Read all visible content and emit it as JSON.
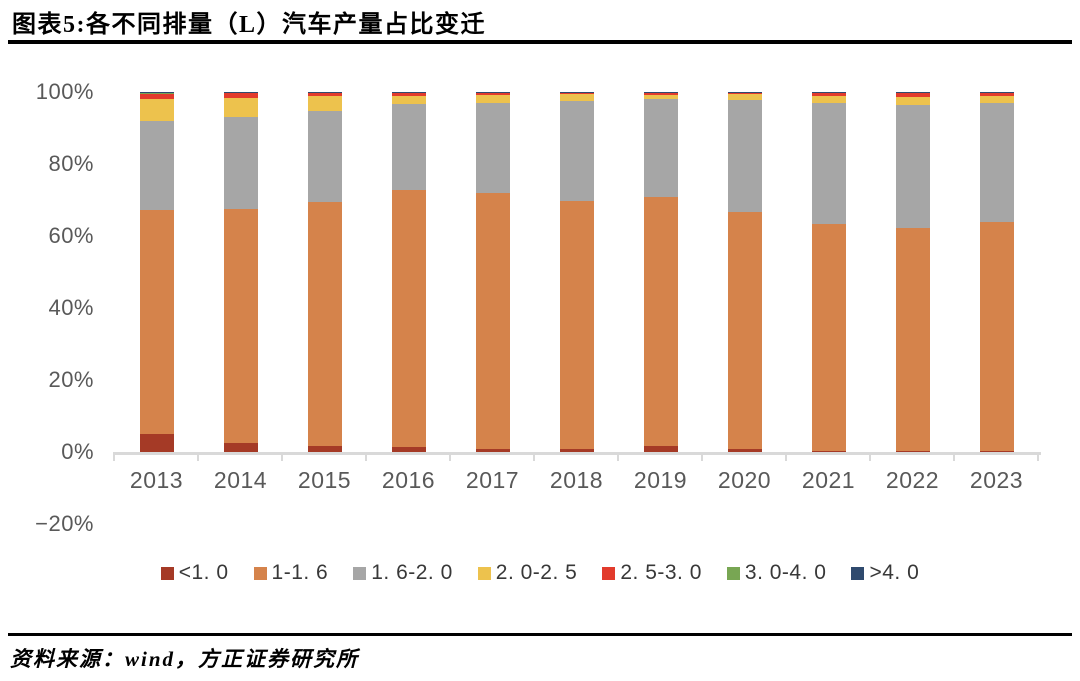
{
  "page": {
    "title": "图表5:各不同排量（L）汽车产量占比变迁",
    "source": "资料来源：wind，方正证券研究所"
  },
  "chart_data": {
    "type": "bar",
    "stacked": true,
    "stacking": "percent",
    "unit": "%",
    "title": "图表5:各不同排量（L）汽车产量占比变迁",
    "categories": [
      "2013",
      "2014",
      "2015",
      "2016",
      "2017",
      "2018",
      "2019",
      "2020",
      "2021",
      "2022",
      "2023"
    ],
    "series": [
      {
        "name": "<1. 0",
        "color": "#A53A26",
        "values": [
          5.0,
          2.5,
          1.8,
          1.3,
          0.7,
          0.7,
          1.8,
          0.9,
          0.3,
          0.2,
          0.3
        ]
      },
      {
        "name": "1-1. 6",
        "color": "#D5834B",
        "values": [
          62.3,
          64.9,
          67.6,
          71.6,
          71.2,
          68.9,
          69.0,
          65.9,
          63.1,
          62.0,
          63.7
        ]
      },
      {
        "name": "1. 6-2. 0",
        "color": "#A6A6A6",
        "values": [
          24.7,
          25.6,
          25.2,
          23.8,
          25.1,
          27.9,
          27.2,
          30.9,
          33.5,
          34.2,
          33.0
        ]
      },
      {
        "name": "2. 0-2. 5",
        "color": "#EDC24D",
        "values": [
          6.0,
          5.3,
          4.3,
          2.3,
          2.2,
          1.9,
          1.3,
          1.7,
          1.9,
          2.2,
          1.8
        ]
      },
      {
        "name": "2. 5-3. 0",
        "color": "#E23B2C",
        "values": [
          1.6,
          1.4,
          0.9,
          0.8,
          0.6,
          0.4,
          0.5,
          0.5,
          1.1,
          1.3,
          1.1
        ]
      },
      {
        "name": "3. 0-4. 0",
        "color": "#78A653",
        "values": [
          0.2,
          0.2,
          0.1,
          0.1,
          0.1,
          0.1,
          0.1,
          0.05,
          0.05,
          0.05,
          0.05
        ]
      },
      {
        "name": ">4. 0",
        "color": "#2F4A6E",
        "values": [
          0.2,
          0.1,
          0.1,
          0.1,
          0.1,
          0.1,
          0.1,
          0.05,
          0.05,
          0.05,
          0.05
        ]
      }
    ],
    "ylim": [
      -20,
      100
    ],
    "y_ticks": [
      {
        "label": "100%",
        "value": 100
      },
      {
        "label": "80%",
        "value": 80
      },
      {
        "label": "60%",
        "value": 60
      },
      {
        "label": "40%",
        "value": 40
      },
      {
        "label": "20%",
        "value": 20
      },
      {
        "label": "0%",
        "value": 0
      },
      {
        "label": "−20%",
        "value": -20
      }
    ],
    "grid": false,
    "legend_position": "bottom",
    "colors": {
      "axis_line": "#D9D9D9",
      "tick_text": "#595959",
      "legend_text": "#383838",
      "title_text": "#000000",
      "rule": "#000000"
    }
  }
}
